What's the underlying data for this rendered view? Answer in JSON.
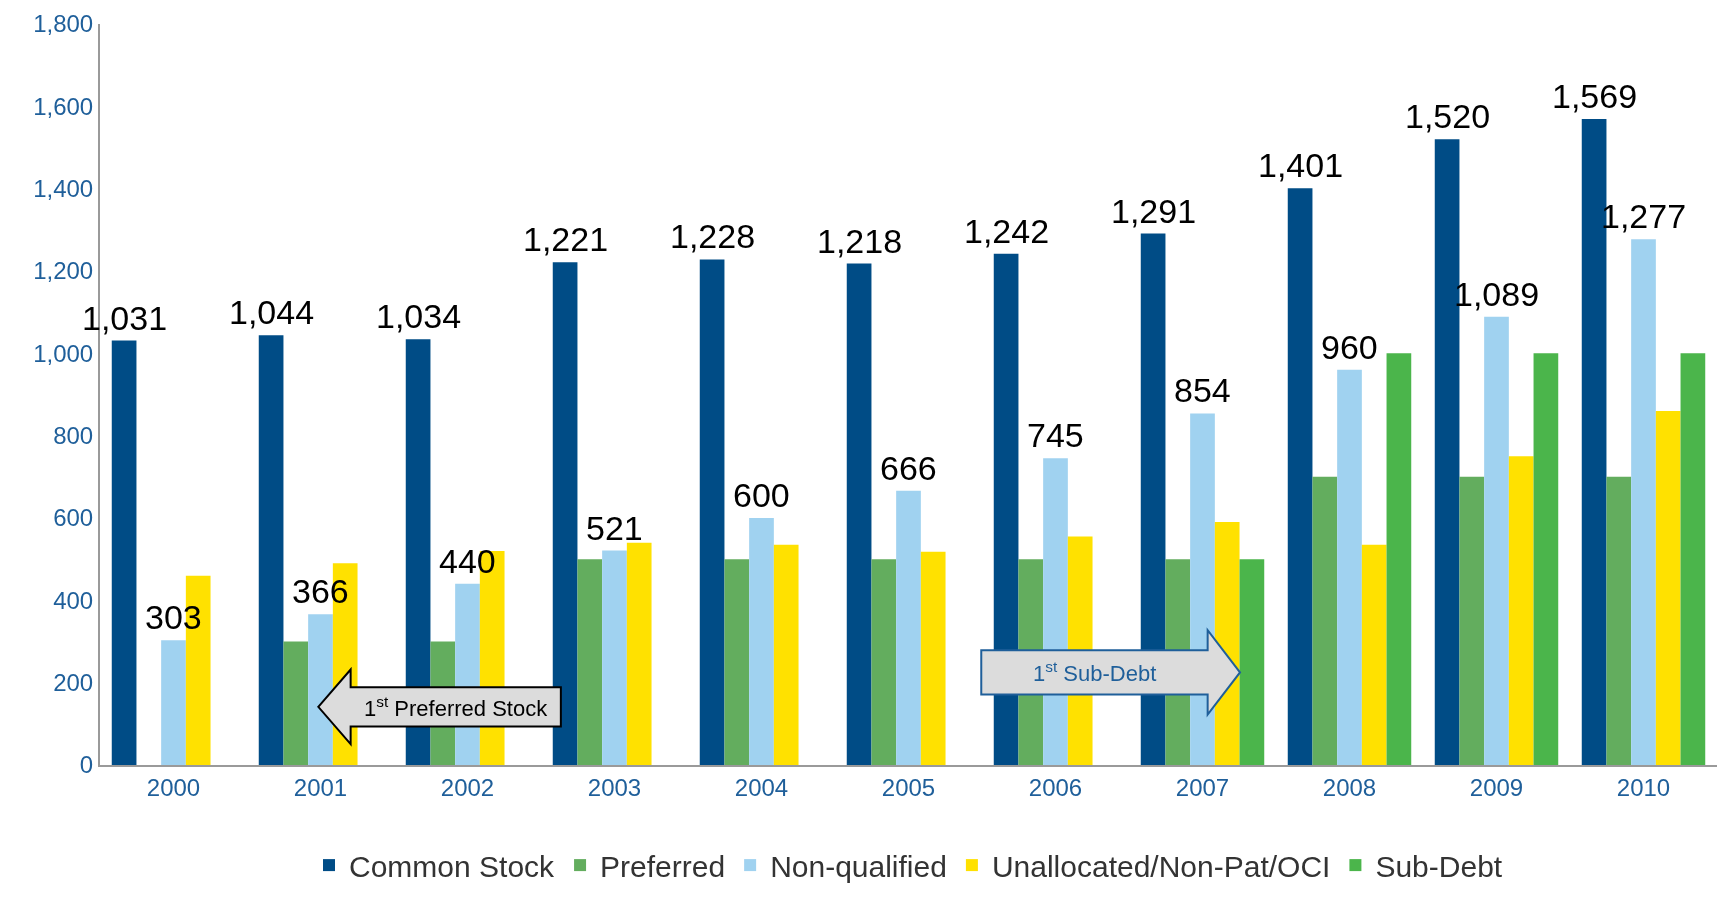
{
  "chart_data": {
    "type": "bar",
    "categories": [
      "2000",
      "2001",
      "2002",
      "2003",
      "2004",
      "2005",
      "2006",
      "2007",
      "2008",
      "2009",
      "2010"
    ],
    "series": [
      {
        "name": "Common Stock",
        "color": "#004c86",
        "values": [
          1031,
          1044,
          1034,
          1221,
          1228,
          1218,
          1242,
          1291,
          1401,
          1520,
          1569
        ],
        "value_labels": [
          "1,031",
          "1,044",
          "1,034",
          "1,221",
          "1,228",
          "1,218",
          "1,242",
          "1,291",
          "1,401",
          "1,520",
          "1,569"
        ]
      },
      {
        "name": "Preferred",
        "color": "#63ad5e",
        "values": [
          null,
          300,
          300,
          500,
          500,
          500,
          500,
          500,
          700,
          700,
          700
        ]
      },
      {
        "name": "Non-qualified",
        "color": "#a0d2f0",
        "values": [
          303,
          366,
          440,
          521,
          600,
          666,
          745,
          854,
          960,
          1089,
          1277
        ],
        "value_labels": [
          "303",
          "366",
          "440",
          "521",
          "600",
          "666",
          "745",
          "854",
          "960",
          "1,089",
          "1,277"
        ]
      },
      {
        "name": "Unallocated/Non-Pat/OCI",
        "color": "#ffe100",
        "values": [
          460,
          490,
          520,
          540,
          535,
          518,
          555,
          590,
          535,
          750,
          860
        ]
      },
      {
        "name": "Sub-Debt",
        "color": "#4bb54b",
        "values": [
          null,
          null,
          null,
          null,
          null,
          null,
          null,
          500,
          1000,
          1000,
          1000
        ]
      }
    ],
    "ylim": [
      0,
      1800
    ],
    "yticks": [
      0,
      {
        "value": 200,
        "label": "200"
      },
      {
        "value": 400,
        "label": "400"
      },
      {
        "value": 600,
        "label": "600"
      },
      {
        "value": 800,
        "label": "800"
      },
      {
        "value": 1000,
        "label": "1,000"
      },
      {
        "value": 1200,
        "label": "1,200"
      },
      {
        "value": 1400,
        "label": "1,400"
      },
      {
        "value": 1600,
        "label": "1,600"
      },
      {
        "value": 1800,
        "label": "1,800"
      }
    ],
    "legend": "bottom",
    "annotations": [
      "1$^{st}$ Preferred Stock",
      "1$^{st}$ Sub-Debt"
    ]
  }
}
